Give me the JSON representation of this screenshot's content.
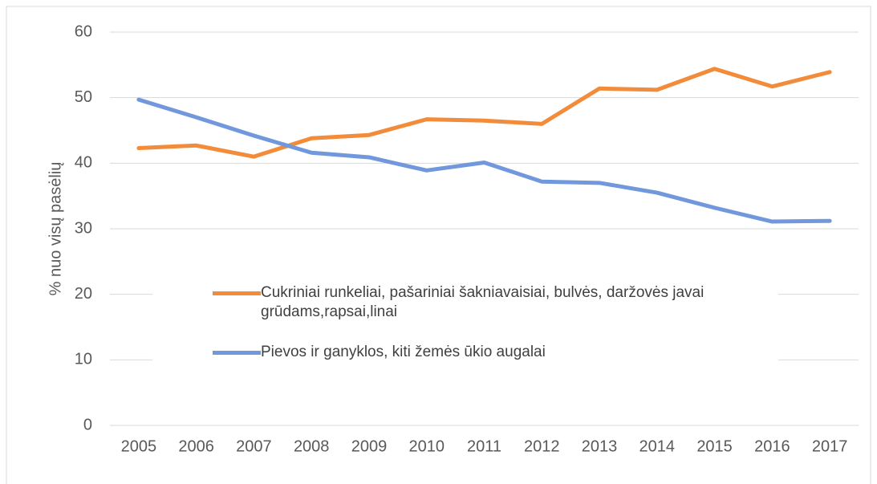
{
  "chart_data": {
    "type": "line",
    "y_axis_label": "% nuo visų pasėlių",
    "categories": [
      "2005",
      "2006",
      "2007",
      "2008",
      "2009",
      "2010",
      "2011",
      "2012",
      "2013",
      "2014",
      "2015",
      "2016",
      "2017"
    ],
    "series": [
      {
        "name": "Cukriniai runkeliai, pašariniai šakniavaisiai, bulvės, daržovės javai grūdams,rapsai,linai",
        "color": "#F28C3A",
        "values": [
          42.3,
          42.7,
          41.0,
          43.8,
          44.3,
          46.7,
          46.5,
          46.0,
          51.4,
          51.2,
          54.4,
          51.7,
          53.9
        ]
      },
      {
        "name": "Pievos ir ganyklos, kiti žemės ūkio augalai",
        "color": "#7198DC",
        "values": [
          49.7,
          47.0,
          44.2,
          41.6,
          40.9,
          38.9,
          40.1,
          37.2,
          37.0,
          35.5,
          33.2,
          31.1,
          31.2
        ]
      }
    ],
    "ylim": [
      0,
      60
    ],
    "yticks": [
      0,
      10,
      20,
      30,
      40,
      50,
      60
    ],
    "grid": true
  }
}
